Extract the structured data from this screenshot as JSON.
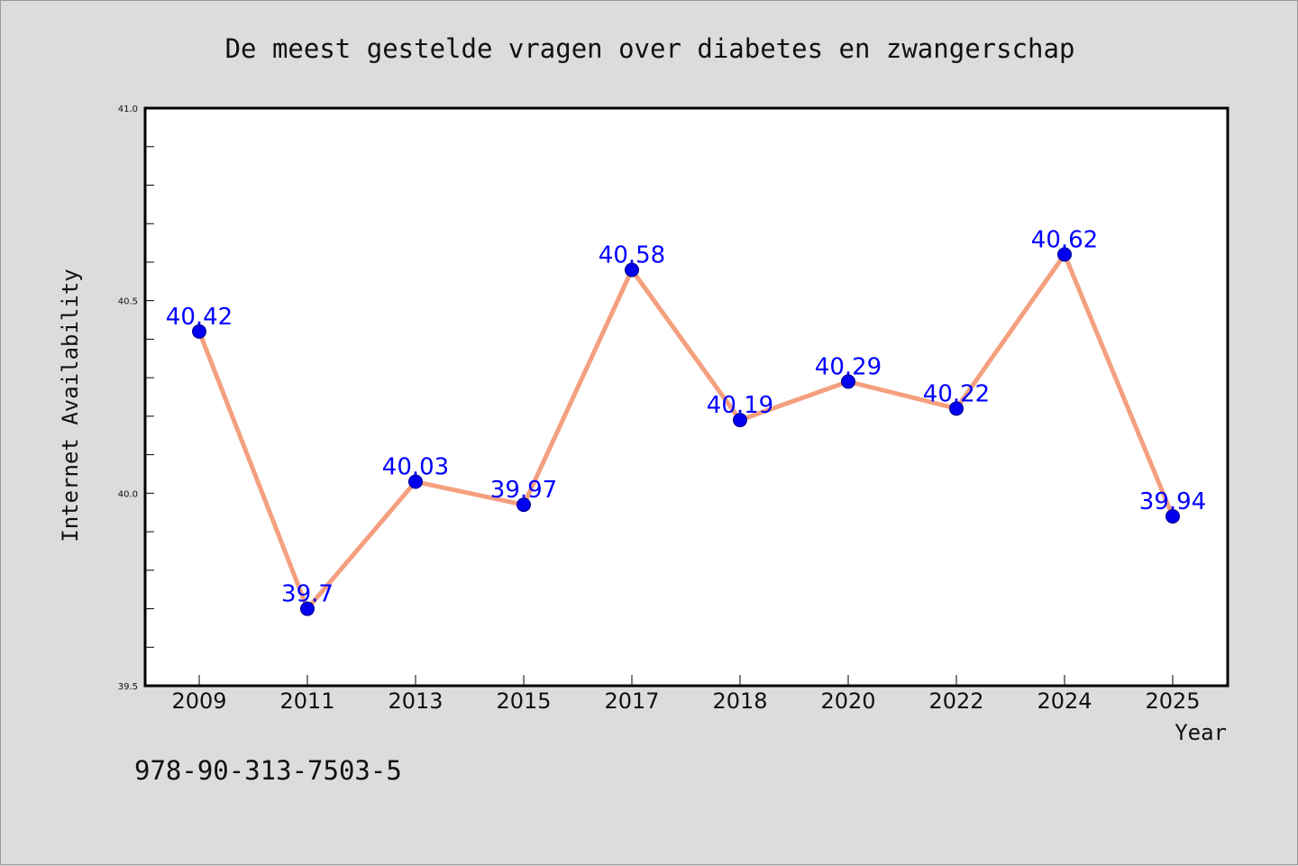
{
  "chart_data": {
    "type": "line",
    "title": "De meest gestelde vragen over diabetes en zwangerschap",
    "xlabel": "Year",
    "ylabel": "Internet Availability",
    "categories": [
      "2009",
      "2011",
      "2013",
      "2015",
      "2017",
      "2018",
      "2020",
      "2022",
      "2024",
      "2025"
    ],
    "series": [
      {
        "values": [
          40.42,
          39.7,
          40.03,
          39.97,
          40.58,
          40.19,
          40.29,
          40.22,
          40.62,
          39.94
        ],
        "data_labels": [
          "40.42",
          "39.7",
          "40.03",
          "39.97",
          "40.58",
          "40.19",
          "40.29",
          "40.22",
          "40.62",
          "39.94"
        ]
      }
    ],
    "ylim": [
      39.5,
      41.0
    ],
    "yticks": [
      "39.5",
      "40.0",
      "40.5",
      "41.0"
    ],
    "grid": false,
    "legend": "none"
  },
  "footer": {
    "isbn": "978-90-313-7503-5"
  },
  "colors": {
    "background": "#dcdcdc",
    "plot_background": "#ffffff",
    "line": "#f4a07f",
    "marker": "#0000ee",
    "data_label": "#0000ff",
    "axis": "#000000"
  }
}
